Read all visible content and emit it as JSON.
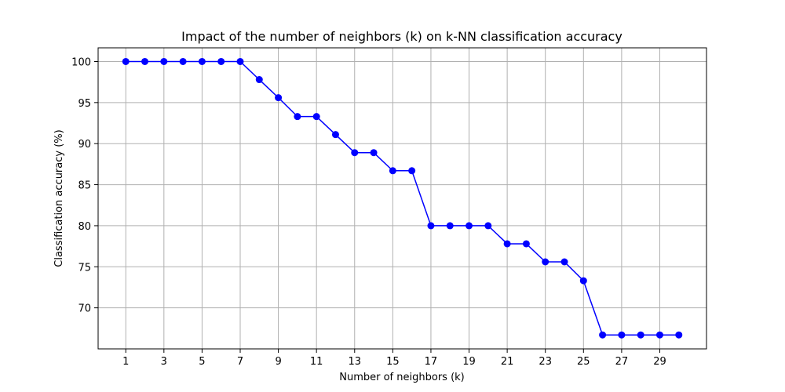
{
  "chart_data": {
    "type": "line",
    "title": "Impact of the number of neighbors (k) on k-NN classification accuracy",
    "xlabel": "Number of neighbors (k)",
    "ylabel": "Classification accuracy (%)",
    "x": [
      1,
      2,
      3,
      4,
      5,
      6,
      7,
      8,
      9,
      10,
      11,
      12,
      13,
      14,
      15,
      16,
      17,
      18,
      19,
      20,
      21,
      22,
      23,
      24,
      25,
      26,
      27,
      28,
      29,
      30
    ],
    "series": [
      {
        "values": [
          100,
          100,
          100,
          100,
          100,
          100,
          100,
          97.8,
          95.6,
          93.3,
          93.3,
          91.1,
          88.9,
          88.9,
          86.7,
          86.7,
          80,
          80,
          80,
          80,
          77.8,
          77.8,
          75.6,
          75.6,
          73.3,
          66.7,
          66.7,
          66.7,
          66.7,
          66.7
        ],
        "color": "#0000ff",
        "marker": "circle"
      }
    ],
    "xticks": [
      "1",
      "3",
      "5",
      "7",
      "9",
      "11",
      "13",
      "15",
      "17",
      "19",
      "21",
      "23",
      "25",
      "27",
      "29"
    ],
    "xtick_values": [
      1,
      3,
      5,
      7,
      9,
      11,
      13,
      15,
      17,
      19,
      21,
      23,
      25,
      27,
      29
    ],
    "yticks": [
      "70",
      "75",
      "80",
      "85",
      "90",
      "95",
      "100"
    ],
    "ytick_values": [
      70,
      75,
      80,
      85,
      90,
      95,
      100
    ],
    "xlim": [
      -0.45,
      31.45
    ],
    "ylim": [
      65.0,
      101.67
    ],
    "grid": true,
    "colors": {
      "line": "#0000ff",
      "grid": "#b0b0b0",
      "axes": "#000000"
    }
  }
}
